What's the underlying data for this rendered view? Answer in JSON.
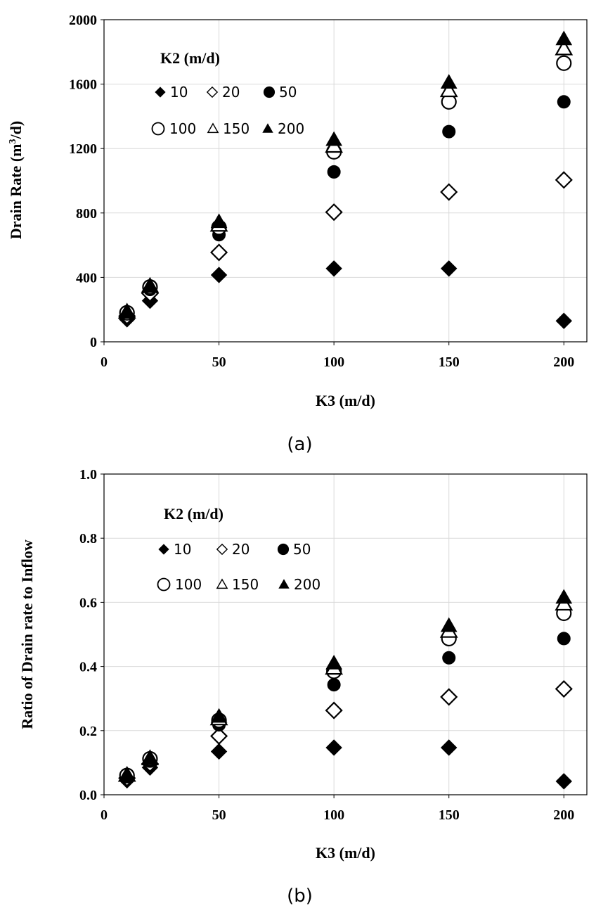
{
  "chart_data": [
    {
      "type": "scatter",
      "caption": "(a)",
      "xlabel": "K3 (m/d)",
      "ylabel_main": "Drain Rate (m",
      "ylabel_sup": "3",
      "ylabel_tail": "/d)",
      "xlim": [
        0,
        210
      ],
      "ylim": [
        0,
        2000
      ],
      "xticks": [
        0,
        50,
        100,
        150,
        200
      ],
      "xtick_labels": [
        "0",
        "50",
        "100",
        "150",
        "200"
      ],
      "yticks": [
        0,
        400,
        800,
        1200,
        1600,
        2000
      ],
      "ytick_labels": [
        "0",
        "400",
        "800",
        "1200",
        "1600",
        "2000"
      ],
      "legend_title": "K2 (m/d)",
      "grid": true,
      "series": [
        {
          "name": "10",
          "marker": "diamond-filled",
          "x": [
            10,
            20,
            50,
            100,
            150,
            200
          ],
          "y": [
            140,
            255,
            415,
            455,
            455,
            130
          ]
        },
        {
          "name": "20",
          "marker": "diamond-open",
          "x": [
            10,
            20,
            50,
            100,
            150,
            200
          ],
          "y": [
            160,
            300,
            555,
            805,
            930,
            1005
          ]
        },
        {
          "name": "50",
          "marker": "circle-filled",
          "x": [
            10,
            20,
            50,
            100,
            150,
            200
          ],
          "y": [
            175,
            325,
            665,
            1055,
            1305,
            1490
          ]
        },
        {
          "name": "100",
          "marker": "circle-open",
          "x": [
            10,
            20,
            50,
            100,
            150,
            200
          ],
          "y": [
            180,
            340,
            710,
            1180,
            1490,
            1730
          ]
        },
        {
          "name": "150",
          "marker": "triangle-open",
          "x": [
            10,
            20,
            50,
            100,
            150,
            200
          ],
          "y": [
            185,
            345,
            725,
            1215,
            1560,
            1820
          ]
        },
        {
          "name": "200",
          "marker": "triangle-filled",
          "x": [
            10,
            20,
            50,
            100,
            150,
            200
          ],
          "y": [
            188,
            348,
            745,
            1255,
            1610,
            1880
          ]
        }
      ]
    },
    {
      "type": "scatter",
      "caption": "(b)",
      "xlabel": "K3 (m/d)",
      "ylabel_main": "Ratio of  Drain rate to Inflow",
      "ylabel_sup": "",
      "ylabel_tail": "",
      "xlim": [
        0,
        210
      ],
      "ylim": [
        0,
        1.0
      ],
      "xticks": [
        0,
        50,
        100,
        150,
        200
      ],
      "xtick_labels": [
        "0",
        "50",
        "100",
        "150",
        "200"
      ],
      "yticks": [
        0,
        0.2,
        0.4,
        0.6,
        0.8,
        1.0
      ],
      "ytick_labels": [
        "0.0",
        "0.2",
        "0.4",
        "0.6",
        "0.8",
        "1.0"
      ],
      "legend_title": "K2 (m/d)",
      "grid": true,
      "series": [
        {
          "name": "10",
          "marker": "diamond-filled",
          "x": [
            10,
            20,
            50,
            100,
            150,
            200
          ],
          "y": [
            0.045,
            0.085,
            0.135,
            0.147,
            0.147,
            0.042
          ]
        },
        {
          "name": "20",
          "marker": "diamond-open",
          "x": [
            10,
            20,
            50,
            100,
            150,
            200
          ],
          "y": [
            0.052,
            0.097,
            0.183,
            0.263,
            0.305,
            0.33
          ]
        },
        {
          "name": "50",
          "marker": "circle-filled",
          "x": [
            10,
            20,
            50,
            100,
            150,
            200
          ],
          "y": [
            0.057,
            0.105,
            0.218,
            0.343,
            0.427,
            0.487
          ]
        },
        {
          "name": "100",
          "marker": "circle-open",
          "x": [
            10,
            20,
            50,
            100,
            150,
            200
          ],
          "y": [
            0.06,
            0.112,
            0.232,
            0.385,
            0.487,
            0.566
          ]
        },
        {
          "name": "150",
          "marker": "triangle-open",
          "x": [
            10,
            20,
            50,
            100,
            150,
            200
          ],
          "y": [
            0.061,
            0.113,
            0.237,
            0.395,
            0.51,
            0.595
          ]
        },
        {
          "name": "200",
          "marker": "triangle-filled",
          "x": [
            10,
            20,
            50,
            100,
            150,
            200
          ],
          "y": [
            0.062,
            0.114,
            0.244,
            0.41,
            0.527,
            0.615
          ]
        }
      ]
    }
  ]
}
